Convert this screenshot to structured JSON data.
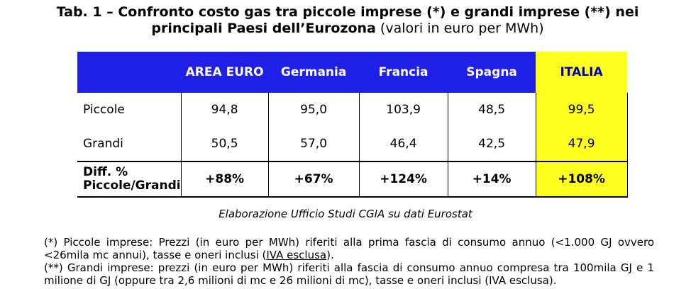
{
  "title": {
    "bold": "Tab. 1 – Confronto costo gas tra piccole imprese (*) e grandi imprese (**) nei principali Paesi dell’Eurozona",
    "normal": " (valori in euro per MWh)"
  },
  "table": {
    "headers": [
      "AREA EURO",
      "Germania",
      "Francia",
      "Spagna",
      "ITALIA"
    ],
    "rows": [
      {
        "label": "Piccole",
        "values": [
          "94,8",
          "95,0",
          "103,9",
          "48,5",
          "99,5"
        ]
      },
      {
        "label": "Grandi",
        "values": [
          "50,5",
          "57,0",
          "46,4",
          "42,5",
          "47,9"
        ]
      }
    ],
    "diff": {
      "label_line1": "Diff. %",
      "label_line2": "Piccole/Grandi",
      "values": [
        "+88%",
        "+67%",
        "+124%",
        "+14%",
        "+108%"
      ]
    }
  },
  "source": "Elaborazione Ufficio Studi CGIA su dati Eurostat",
  "notes": {
    "note1_main": "(*) Piccole imprese: Prezzi (in euro per MWh) riferiti alla prima fascia di consumo annuo (<1.000 GJ ovvero <26mila mc annui), tasse e oneri inclusi (",
    "note1_underlined": "IVA esclusa",
    "note1_end": ").",
    "note2": "(**) Grandi imprese: prezzi (in euro per MWh) riferiti alla fascia di consumo annuo compresa tra 100mila GJ e 1 milione di GJ (oppure tra 2,6 milioni di mc e 26 milioni di mc), tasse e oneri inclusi (IVA esclusa)."
  },
  "colors": {
    "header_blue": "#1f1fe8",
    "italia_yellow": "#ffff1f",
    "italia_header_text": "#0000aa"
  }
}
